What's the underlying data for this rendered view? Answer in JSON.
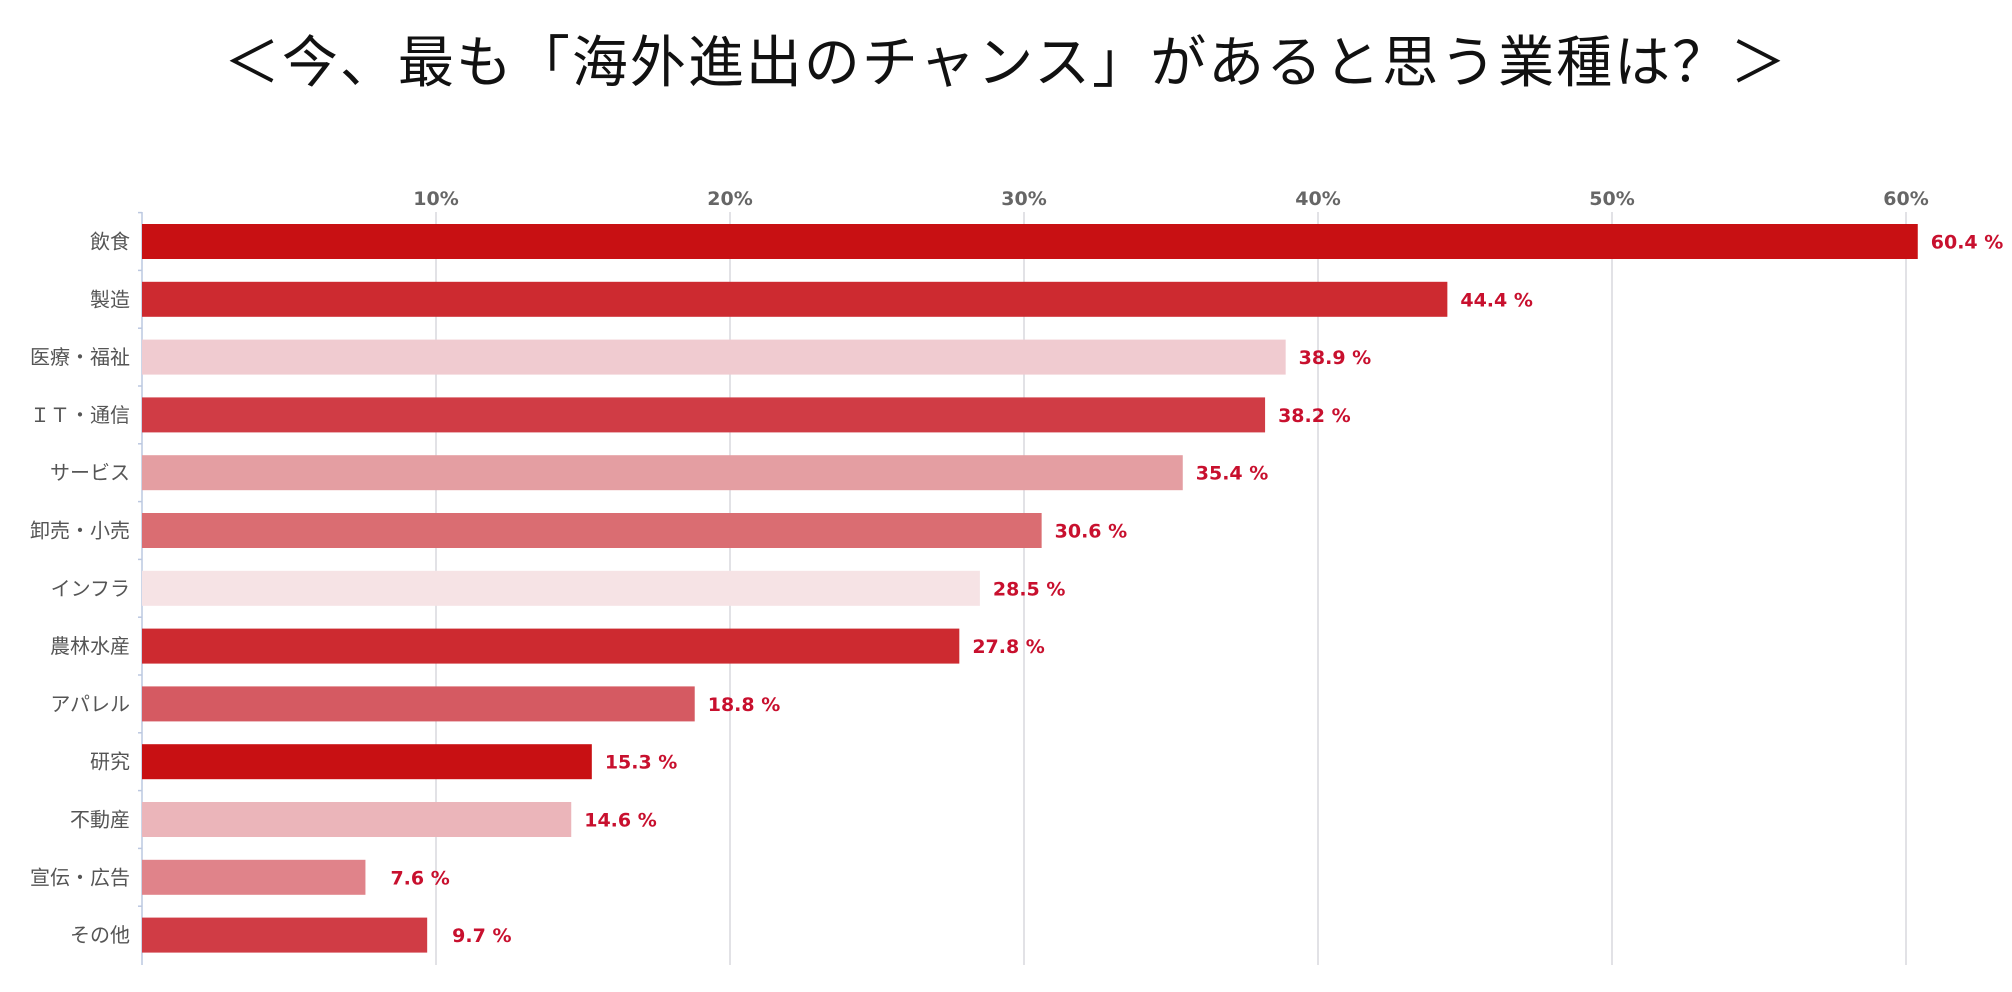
{
  "chart_data": {
    "type": "bar",
    "orientation": "horizontal",
    "title": "＜今、最も「海外進出のチャンス」があると思う業種は？＞",
    "categories": [
      "飲食",
      "製造",
      "医療・福祉",
      "ＩＴ・通信",
      "サービス",
      "卸売・小売",
      "インフラ",
      "農林水産",
      "アパレル",
      "研究",
      "不動産",
      "宣伝・広告",
      "その他"
    ],
    "values": [
      60.4,
      44.4,
      38.9,
      38.2,
      35.4,
      30.6,
      28.5,
      27.8,
      18.8,
      15.3,
      14.6,
      7.6,
      9.7
    ],
    "value_labels": [
      "60.4 %",
      "44.4 %",
      "38.9 %",
      "38.2 %",
      "35.4 %",
      "30.6 %",
      "28.5 %",
      "27.8 %",
      "18.8 %",
      "15.3 %",
      "14.6 %",
      "7.6 %",
      "9.7 %"
    ],
    "bar_colors": [
      "#c81013",
      "#cd2a30",
      "#f0cbd0",
      "#d03c45",
      "#e49ea2",
      "#da6d72",
      "#f6e3e5",
      "#cd2a30",
      "#d55a62",
      "#c81013",
      "#ebb5ba",
      "#e0838a",
      "#d03c45"
    ],
    "value_label_color": "#c8102e",
    "xticks": [
      10,
      20,
      30,
      40,
      50,
      60
    ],
    "xtick_labels": [
      "10%",
      "20%",
      "30%",
      "40%",
      "50%",
      "60%"
    ],
    "xlim": [
      0,
      63
    ],
    "grid": true,
    "xlabel": "",
    "ylabel": ""
  }
}
